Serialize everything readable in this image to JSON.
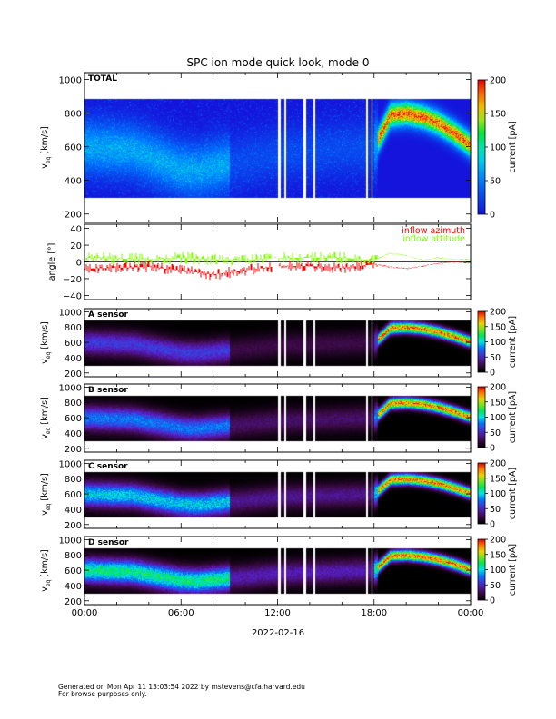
{
  "title": "SPC ion mode quick look, mode 0",
  "footer": {
    "generated": "Generated on Mon Apr 11 13:03:54 2022 by mstevens@cfa.harvard.edu",
    "note": "For browse purposes only."
  },
  "colors": {
    "azimuth": "#ff0000",
    "attitude": "#80ff00"
  },
  "chart_data": [
    {
      "type": "heatmap",
      "panel_label": "TOTAL",
      "ylabel": "v_eq [km/s]",
      "ylabel_main": "v",
      "ylabel_sub": "eq",
      "ylabel_unit": "[km/s]",
      "yticks": [
        "200",
        "400",
        "600",
        "800",
        "1000"
      ],
      "ylim": [
        150,
        1040
      ],
      "colorbar": {
        "label": "current [pA]",
        "ticks": [
          "0",
          "50",
          "100",
          "150",
          "200"
        ],
        "range": [
          0,
          200
        ]
      },
      "peak_speed_kms": {
        "hours": [
          0,
          3,
          6,
          7,
          9,
          12,
          15,
          18,
          19,
          20,
          21,
          22,
          23,
          24
        ],
        "values": [
          600,
          580,
          470,
          460,
          500,
          560,
          580,
          600,
          790,
          800,
          780,
          740,
          680,
          610
        ]
      }
    },
    {
      "type": "line",
      "ylabel": "angle [°]",
      "yticks": [
        "40",
        "20",
        "0",
        "−20",
        "−40"
      ],
      "ylim": [
        -45,
        45
      ],
      "series": [
        {
          "name": "inflow azimuth",
          "hours": [
            0,
            2,
            4,
            6,
            8,
            10,
            12,
            14,
            16,
            18,
            19,
            20,
            21,
            22,
            23,
            24
          ],
          "values": [
            -8,
            -7,
            -6,
            -10,
            -15,
            -10,
            -5,
            -5,
            -7,
            -3,
            -6,
            -8,
            -5,
            -2,
            0,
            -1
          ]
        },
        {
          "name": "inflow attitude",
          "hours": [
            0,
            2,
            4,
            6,
            8,
            10,
            12,
            14,
            16,
            18,
            19,
            20,
            21,
            22,
            23,
            24
          ],
          "values": [
            5,
            4,
            3,
            5,
            3,
            2,
            5,
            5,
            5,
            2,
            10,
            8,
            2,
            5,
            3,
            3
          ]
        }
      ]
    },
    {
      "type": "heatmap",
      "panel_label": "A sensor",
      "ylabel": "v_eq [km/s]",
      "yticks": [
        "200",
        "400",
        "600",
        "800",
        "1000"
      ],
      "ylim": [
        150,
        1040
      ],
      "colorbar": {
        "label": "current [pA]",
        "ticks": [
          "0",
          "50",
          "100",
          "150",
          "200"
        ],
        "range": [
          0,
          200
        ]
      }
    },
    {
      "type": "heatmap",
      "panel_label": "B sensor",
      "ylabel": "v_eq [km/s]",
      "yticks": [
        "200",
        "400",
        "600",
        "800",
        "1000"
      ],
      "ylim": [
        150,
        1040
      ],
      "colorbar": {
        "label": "current [pA]",
        "ticks": [
          "0",
          "50",
          "100",
          "150",
          "200"
        ],
        "range": [
          0,
          200
        ]
      }
    },
    {
      "type": "heatmap",
      "panel_label": "C sensor",
      "ylabel": "v_eq [km/s]",
      "yticks": [
        "200",
        "400",
        "600",
        "800",
        "1000"
      ],
      "ylim": [
        150,
        1040
      ],
      "colorbar": {
        "label": "current [pA]",
        "ticks": [
          "0",
          "50",
          "100",
          "150",
          "200"
        ],
        "range": [
          0,
          200
        ]
      }
    },
    {
      "type": "heatmap",
      "panel_label": "D sensor",
      "ylabel": "v_eq [km/s]",
      "yticks": [
        "200",
        "400",
        "600",
        "800",
        "1000"
      ],
      "ylim": [
        150,
        1040
      ],
      "colorbar": {
        "label": "current [pA]",
        "ticks": [
          "0",
          "50",
          "100",
          "150",
          "200"
        ],
        "range": [
          0,
          200
        ]
      }
    }
  ],
  "xaxis": {
    "ticks": [
      "00:00",
      "06:00",
      "12:00",
      "18:00",
      "00:00"
    ],
    "date": "2022-02-16",
    "range_hours": [
      0,
      24
    ]
  }
}
